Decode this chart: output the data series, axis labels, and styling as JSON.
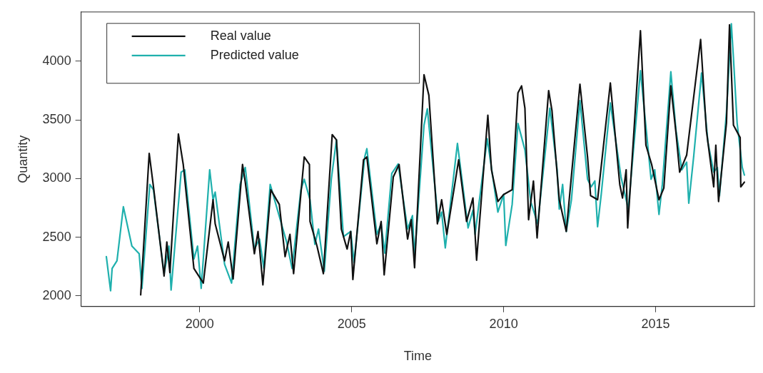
{
  "chart_data": {
    "type": "line",
    "xlabel": "Time",
    "ylabel": "Quantity",
    "xlim": [
      1996.1,
      2018.25
    ],
    "ylim": [
      1910,
      4420
    ],
    "xticks": [
      2000,
      2005,
      2010,
      2015
    ],
    "yticks": [
      2000,
      2500,
      3000,
      3500,
      4000
    ],
    "grid": false,
    "legend": "top left",
    "marker": "none",
    "line_style": "solid",
    "series": [
      {
        "name": "Real value",
        "color": "#111111",
        "x": [
          1998.06,
          1998.34,
          1998.48,
          1998.83,
          1998.92,
          1999.02,
          1999.3,
          1999.46,
          1999.81,
          2000.12,
          2000.44,
          2000.51,
          2000.82,
          2000.94,
          2001.1,
          2001.41,
          2001.5,
          2001.8,
          2001.92,
          2002.08,
          2002.34,
          2002.62,
          2002.81,
          2002.97,
          2003.09,
          2003.44,
          2003.61,
          2003.63,
          2003.86,
          2004.07,
          2004.36,
          2004.5,
          2004.66,
          2004.85,
          2004.97,
          2005.04,
          2005.39,
          2005.5,
          2005.83,
          2005.97,
          2006.07,
          2006.37,
          2006.56,
          2006.84,
          2006.96,
          2007.07,
          2007.38,
          2007.54,
          2007.82,
          2007.96,
          2008.13,
          2008.52,
          2008.78,
          2008.99,
          2009.11,
          2009.48,
          2009.6,
          2009.81,
          2010.0,
          2010.28,
          2010.47,
          2010.59,
          2010.7,
          2010.82,
          2010.98,
          2011.1,
          2011.48,
          2011.59,
          2011.83,
          2012.06,
          2012.51,
          2012.76,
          2012.86,
          2013.09,
          2013.51,
          2013.82,
          2013.91,
          2014.03,
          2014.08,
          2014.5,
          2014.68,
          2014.87,
          2015.11,
          2015.27,
          2015.5,
          2015.67,
          2015.79,
          2016.02,
          2016.48,
          2016.67,
          2016.91,
          2016.98,
          2017.07,
          2017.33,
          2017.43,
          2017.56,
          2017.78,
          2017.8,
          2017.92
        ],
        "values": [
          2010,
          3215,
          2930,
          2170,
          2460,
          2200,
          3380,
          3120,
          2235,
          2110,
          2820,
          2615,
          2300,
          2460,
          2145,
          3120,
          2970,
          2360,
          2550,
          2095,
          2905,
          2780,
          2335,
          2525,
          2190,
          3185,
          3120,
          2635,
          2425,
          2190,
          3375,
          3330,
          2570,
          2400,
          2550,
          2140,
          3160,
          3185,
          2445,
          2635,
          2180,
          3015,
          3120,
          2485,
          2650,
          2240,
          3885,
          3710,
          2615,
          2820,
          2525,
          3160,
          2635,
          2835,
          2305,
          3540,
          3075,
          2805,
          2865,
          2905,
          3730,
          3790,
          3600,
          2650,
          2980,
          2495,
          3750,
          3580,
          2820,
          2550,
          3805,
          3185,
          2855,
          2820,
          3815,
          2950,
          2835,
          3075,
          2580,
          4260,
          3285,
          3120,
          2820,
          2920,
          3790,
          3390,
          3055,
          3200,
          4185,
          3410,
          2930,
          3285,
          2805,
          3475,
          4310,
          3455,
          3350,
          2930,
          2970
        ]
      },
      {
        "name": "Predicted value",
        "color": "#1fb0ad",
        "x": [
          1996.93,
          1997.07,
          1997.12,
          1997.28,
          1997.49,
          1997.77,
          1998.01,
          1998.1,
          1998.36,
          1998.48,
          1998.83,
          1998.99,
          1999.06,
          1999.39,
          1999.51,
          1999.81,
          1999.93,
          2000.05,
          2000.33,
          2000.44,
          2000.51,
          2000.82,
          2001.05,
          2001.33,
          2001.5,
          2001.8,
          2001.97,
          2002.11,
          2002.32,
          2002.86,
          2003.04,
          2003.33,
          2003.44,
          2003.63,
          2003.79,
          2003.91,
          2004.1,
          2004.33,
          2004.5,
          2004.73,
          2004.97,
          2005.08,
          2005.43,
          2005.5,
          2005.83,
          2005.97,
          2006.09,
          2006.32,
          2006.53,
          2006.84,
          2007.0,
          2007.07,
          2007.38,
          2007.49,
          2007.85,
          2007.96,
          2008.08,
          2008.48,
          2008.83,
          2008.99,
          2009.06,
          2009.46,
          2009.81,
          2010.0,
          2010.07,
          2010.28,
          2010.47,
          2010.7,
          2010.89,
          2011.12,
          2011.52,
          2011.76,
          2011.83,
          2011.94,
          2012.06,
          2012.23,
          2012.51,
          2012.76,
          2012.88,
          2013.0,
          2013.09,
          2013.21,
          2013.51,
          2013.86,
          2014.1,
          2014.5,
          2014.85,
          2014.97,
          2015.11,
          2015.22,
          2015.5,
          2015.67,
          2015.86,
          2016.02,
          2016.09,
          2016.25,
          2016.51,
          2016.72,
          2016.91,
          2017.03,
          2017.1,
          2017.33,
          2017.49,
          2017.56,
          2017.68,
          2017.85,
          2017.92
        ],
        "values": [
          2335,
          2045,
          2235,
          2300,
          2760,
          2425,
          2360,
          2065,
          2950,
          2905,
          2190,
          2425,
          2050,
          3055,
          3075,
          2315,
          2425,
          2065,
          3075,
          2820,
          2885,
          2270,
          2110,
          2950,
          3095,
          2400,
          2485,
          2235,
          2950,
          2460,
          2235,
          2905,
          2995,
          2820,
          2440,
          2570,
          2210,
          2995,
          3330,
          2505,
          2550,
          2285,
          3185,
          3255,
          2525,
          2615,
          2365,
          3045,
          3125,
          2570,
          2685,
          2335,
          3455,
          3595,
          2635,
          2715,
          2410,
          3300,
          2580,
          2730,
          2525,
          3340,
          2715,
          2865,
          2430,
          2780,
          3470,
          3245,
          2805,
          2615,
          3600,
          3075,
          2740,
          2950,
          2550,
          2820,
          3665,
          2995,
          2930,
          2980,
          2590,
          2865,
          3645,
          3015,
          2740,
          3920,
          2995,
          3075,
          2695,
          2950,
          3910,
          3410,
          3075,
          3140,
          2790,
          3185,
          3900,
          3310,
          3055,
          3095,
          2855,
          3565,
          4320,
          4025,
          3475,
          3095,
          3030
        ]
      }
    ]
  }
}
